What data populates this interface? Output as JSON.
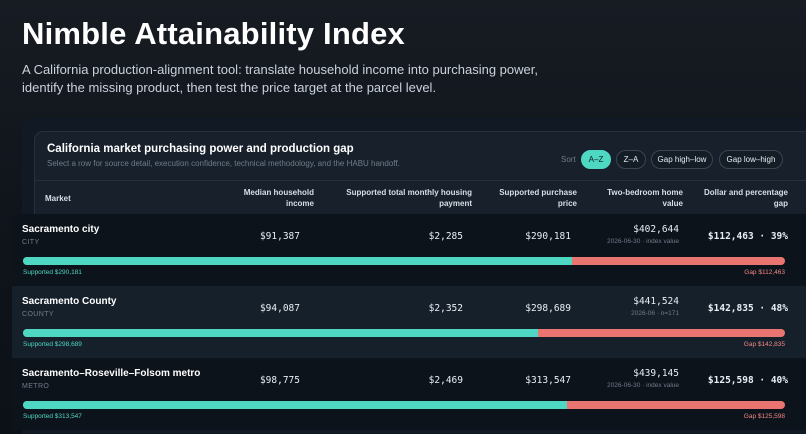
{
  "header": {
    "title": "Nimble Attainability Index",
    "subtitle": "A California production-alignment tool: translate household income into purchasing power, identify the missing product, then test the price target at the parcel level."
  },
  "card": {
    "title": "California market purchasing power and production gap",
    "subtitle": "Select a row for source detail, execution confidence, technical methodology, and the HABU handoff.",
    "sort_label": "Sort",
    "sort_options": [
      {
        "label": "A–Z",
        "active": true
      },
      {
        "label": "Z–A",
        "active": false
      },
      {
        "label": "Gap high–low",
        "active": false
      },
      {
        "label": "Gap low–high",
        "active": false
      }
    ]
  },
  "columns": {
    "market": "Market",
    "income": "Median household income",
    "payment": "Supported total monthly housing payment",
    "price": "Supported purchase price",
    "home": "Two-bedroom home value",
    "gap": "Dollar and percentage gap"
  },
  "rows": [
    {
      "name": "Sacramento city",
      "type": "CITY",
      "income": "$91,387",
      "payment": "$2,285",
      "price": "$290,181",
      "home": "$402,644",
      "home_meta": "2026-06-30 · index value",
      "gap": "$112,463 · 39%",
      "supported_fraction": 0.721,
      "supported_caption": "Supported $290,181",
      "gap_caption": "Gap $112,463"
    },
    {
      "name": "Sacramento County",
      "type": "COUNTY",
      "income": "$94,087",
      "payment": "$2,352",
      "price": "$298,689",
      "home": "$441,524",
      "home_meta": "2026-06 · n=171",
      "gap": "$142,835 · 48%",
      "supported_fraction": 0.676,
      "supported_caption": "Supported $298,689",
      "gap_caption": "Gap $142,835"
    },
    {
      "name": "Sacramento–Roseville–Folsom metro",
      "type": "METRO",
      "income": "$98,775",
      "payment": "$2,469",
      "price": "$313,547",
      "home": "$439,145",
      "home_meta": "2026-06-30 · index value",
      "gap": "$125,598 · 40%",
      "supported_fraction": 0.714,
      "supported_caption": "Supported $313,547",
      "gap_caption": "Gap $125,598"
    }
  ],
  "colors": {
    "supported": "#4ed7c2",
    "gap": "#e97470"
  }
}
